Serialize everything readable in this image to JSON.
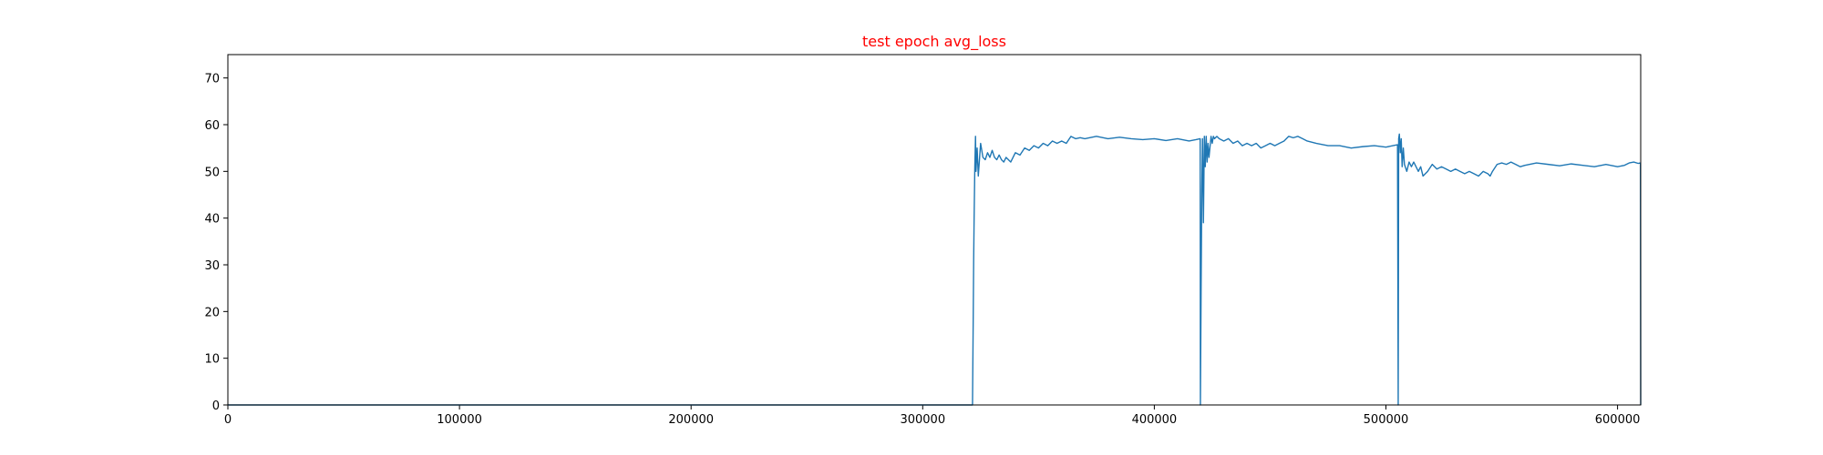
{
  "chart_data": {
    "type": "line",
    "title": "test epoch avg_loss",
    "title_color": "#ff0000",
    "xlabel": "",
    "ylabel": "",
    "xlim": [
      0,
      610000
    ],
    "ylim": [
      0,
      75
    ],
    "xticks": [
      0,
      100000,
      200000,
      300000,
      400000,
      500000,
      600000
    ],
    "yticks": [
      0,
      10,
      20,
      30,
      40,
      50,
      60,
      70
    ],
    "grid": false,
    "series_color": "#1f77b4",
    "series": [
      {
        "x": [
          0,
          321500,
          321800,
          322000,
          322200,
          322500,
          322800,
          323000,
          323500,
          324000,
          325000,
          326000,
          327000,
          328000,
          329000,
          330000,
          331000,
          332000,
          333000,
          334000,
          335000,
          336000,
          337000,
          338000,
          339000,
          340000,
          342000,
          344000,
          346000,
          348000,
          350000,
          352000,
          354000,
          356000,
          358000,
          360000,
          362000,
          364000,
          366000,
          368000,
          370000,
          375000,
          380000,
          385000,
          390000,
          395000,
          400000,
          405000,
          410000,
          415000,
          418000,
          419800,
          419900,
          420200,
          420500,
          420800,
          421200,
          421600,
          422000,
          422400,
          422800,
          423200,
          423600,
          424000,
          424500,
          425000,
          425500,
          426000,
          427000,
          428000,
          430000,
          432000,
          434000,
          436000,
          438000,
          440000,
          442000,
          444000,
          446000,
          448000,
          450000,
          452000,
          454000,
          456000,
          458000,
          460000,
          462000,
          464000,
          466000,
          470000,
          475000,
          480000,
          485000,
          490000,
          495000,
          500000,
          503000,
          505000,
          505300,
          505500,
          505800,
          506200,
          506600,
          507000,
          507500,
          508000,
          509000,
          510000,
          511000,
          512000,
          513000,
          514000,
          515000,
          516000,
          518000,
          520000,
          522000,
          524000,
          526000,
          528000,
          530000,
          532000,
          534000,
          536000,
          538000,
          540000,
          542000,
          544000,
          545000,
          546000,
          548000,
          550000,
          552000,
          554000,
          556000,
          558000,
          560000,
          565000,
          570000,
          575000,
          580000,
          585000,
          590000,
          595000,
          600000,
          603000,
          605000,
          607000,
          609000,
          609900,
          610000
        ],
        "y": [
          0,
          0,
          18,
          31,
          40,
          51,
          57.5,
          50,
          55,
          49,
          56,
          53,
          52.5,
          54,
          53,
          54.5,
          53,
          52.5,
          53.5,
          52.5,
          52,
          53,
          52.5,
          52,
          53,
          54,
          53.5,
          55,
          54.5,
          55.5,
          55,
          56,
          55.5,
          56.5,
          56,
          56.5,
          56,
          57.5,
          57,
          57.2,
          57,
          57.5,
          57,
          57.3,
          57,
          56.8,
          57,
          56.6,
          57,
          56.5,
          56.8,
          57,
          0,
          25,
          46,
          57,
          39,
          57.5,
          51,
          57.5,
          52,
          56,
          53,
          55,
          57.5,
          56,
          57.5,
          57,
          57.5,
          57,
          56.5,
          57,
          56,
          56.5,
          55.5,
          56,
          55.5,
          56,
          55,
          55.5,
          56,
          55.5,
          56,
          56.5,
          57.5,
          57.2,
          57.5,
          57,
          56.5,
          56,
          55.5,
          55.5,
          55,
          55.3,
          55.5,
          55.2,
          55.5,
          55.7,
          0,
          57,
          58,
          54,
          57,
          51,
          55,
          51.5,
          50,
          52,
          51,
          52,
          51,
          50,
          51,
          49,
          50,
          51.5,
          50.5,
          51,
          50.5,
          50,
          50.5,
          50,
          49.5,
          50,
          49.5,
          49,
          50,
          49.5,
          49,
          50,
          51.5,
          51.8,
          51.5,
          52,
          51.5,
          51,
          51.3,
          51.8,
          51.5,
          51.2,
          51.6,
          51.3,
          51,
          51.5,
          51,
          51.3,
          51.8,
          52,
          51.7,
          51.8,
          0
        ]
      }
    ]
  }
}
